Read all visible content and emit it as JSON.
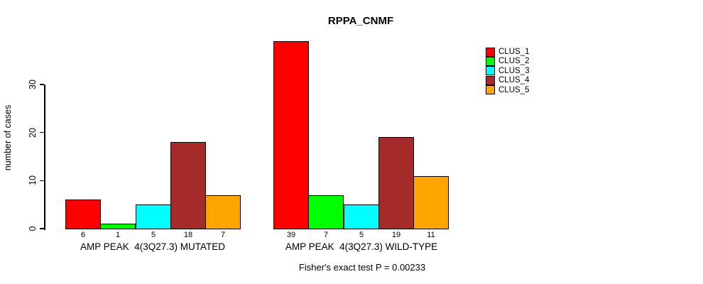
{
  "chart_data": {
    "type": "bar",
    "title": "RPPA_CNMF",
    "ylabel": "number of cases",
    "xlabel": "",
    "yticks": [
      0,
      10,
      20,
      30
    ],
    "ylim": [
      0,
      39
    ],
    "grid": false,
    "categories": [
      "AMP PEAK  4(3Q27.3) MUTATED",
      "AMP PEAK  4(3Q27.3) WILD-TYPE"
    ],
    "series": [
      {
        "name": "CLUS_1",
        "color": "#FF0000",
        "values": [
          6,
          39
        ]
      },
      {
        "name": "CLUS_2",
        "color": "#00FF00",
        "values": [
          1,
          7
        ]
      },
      {
        "name": "CLUS_3",
        "color": "#00FFFF",
        "values": [
          5,
          5
        ]
      },
      {
        "name": "CLUS_4",
        "color": "#A52A2A",
        "values": [
          18,
          19
        ]
      },
      {
        "name": "CLUS_5",
        "color": "#FFA500",
        "values": [
          7,
          11
        ]
      }
    ],
    "legend": {
      "position": "right",
      "entries": [
        "CLUS_1",
        "CLUS_2",
        "CLUS_3",
        "CLUS_4",
        "CLUS_5"
      ]
    },
    "bar_value_labels": [
      [
        "6",
        "1",
        "5",
        "18",
        "7"
      ],
      [
        "39",
        "7",
        "5",
        "19",
        "11"
      ]
    ],
    "footnote": "Fisher's exact test P = 0.00233"
  }
}
